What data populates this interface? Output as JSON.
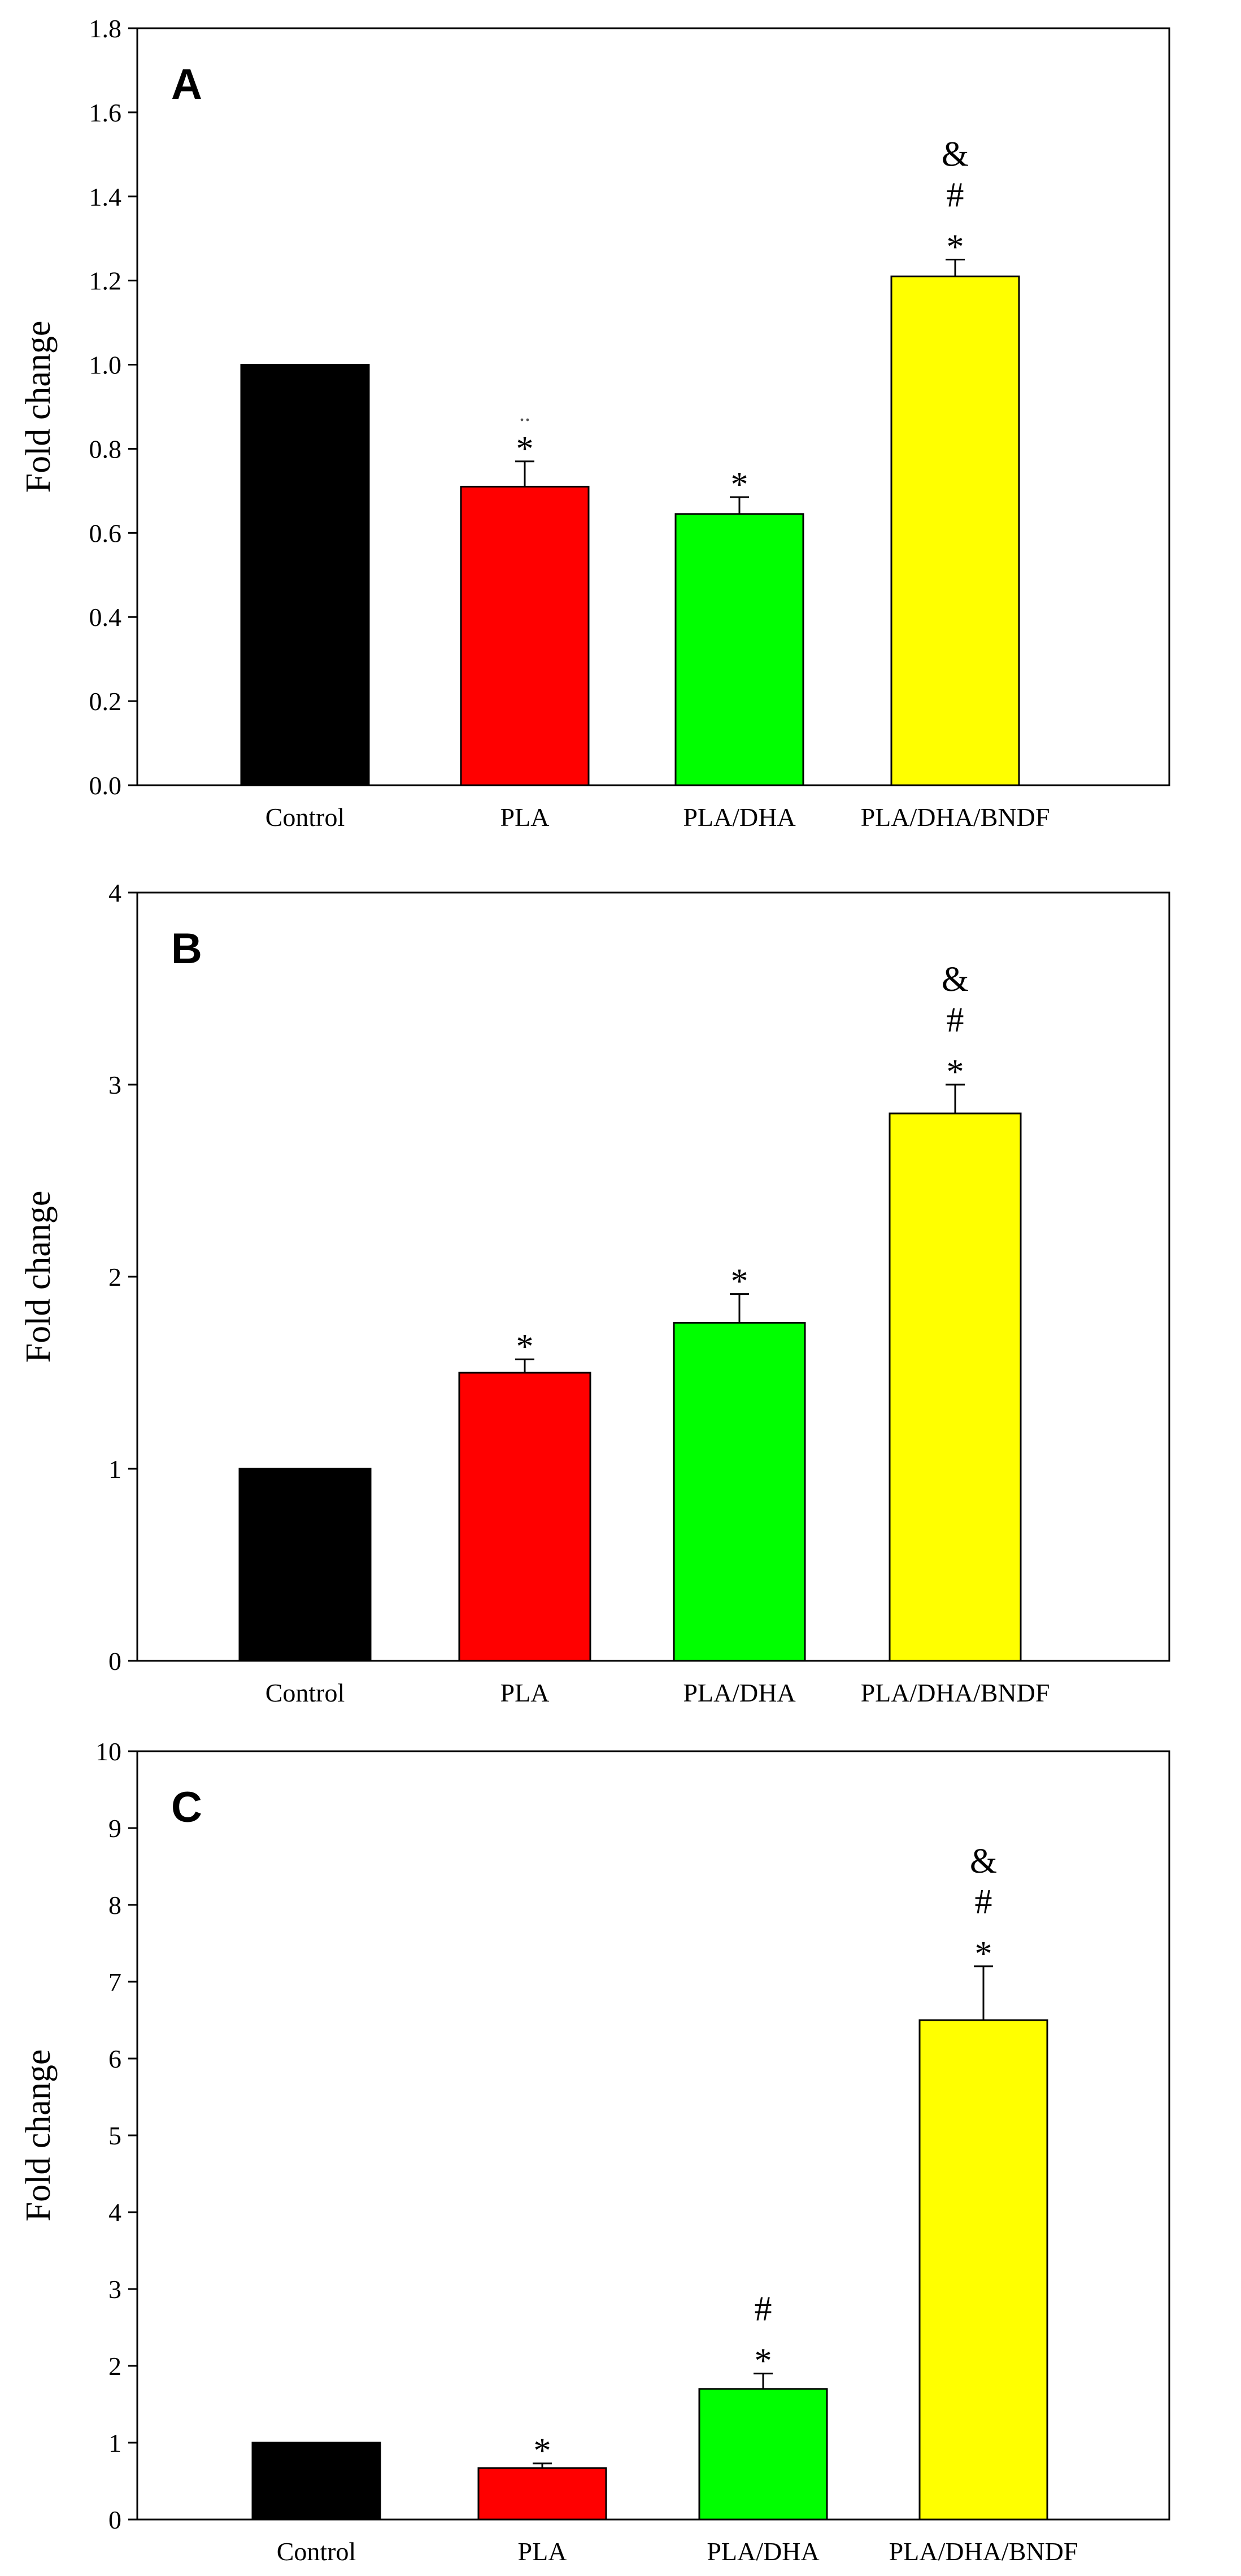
{
  "chart_data": [
    {
      "type": "bar",
      "panel_label": "A",
      "title": "",
      "xlabel": "",
      "ylabel": "Fold change",
      "ylim": [
        0,
        1.8
      ],
      "yticks": [
        "0.0",
        "0.2",
        "0.4",
        "0.6",
        "0.8",
        "1.0",
        "1.2",
        "1.4",
        "1.6",
        "1.8"
      ],
      "categories": [
        "Control",
        "PLA",
        "PLA/DHA",
        "PLA/DHA/BNDF"
      ],
      "values": [
        1.0,
        0.71,
        0.645,
        1.21
      ],
      "errors": [
        0,
        0.06,
        0.04,
        0.04
      ],
      "colors": [
        "#000000",
        "#ff0000",
        "#00ff00",
        "#ffff00"
      ],
      "annotations": [
        [],
        [
          "*"
        ],
        [
          "*"
        ],
        [
          "*",
          "#",
          "&"
        ]
      ],
      "marks": [
        "",
        "..",
        "",
        ""
      ]
    },
    {
      "type": "bar",
      "panel_label": "B",
      "title": "",
      "xlabel": "",
      "ylabel": "Fold change",
      "ylim": [
        0,
        4
      ],
      "yticks": [
        "0",
        "1",
        "2",
        "3",
        "4"
      ],
      "categories": [
        "Control",
        "PLA",
        "PLA/DHA",
        "PLA/DHA/BNDF"
      ],
      "values": [
        1.0,
        1.5,
        1.76,
        2.85
      ],
      "errors": [
        0,
        0.07,
        0.15,
        0.15
      ],
      "colors": [
        "#000000",
        "#ff0000",
        "#00ff00",
        "#ffff00"
      ],
      "annotations": [
        [],
        [
          "*"
        ],
        [
          "*"
        ],
        [
          "*",
          "#",
          "&"
        ]
      ],
      "marks": [
        "",
        "",
        "",
        ""
      ]
    },
    {
      "type": "bar",
      "panel_label": "C",
      "title": "",
      "xlabel": "",
      "ylabel": "Fold change",
      "ylim": [
        0,
        10
      ],
      "yticks": [
        "0",
        "1",
        "2",
        "3",
        "4",
        "5",
        "6",
        "7",
        "8",
        "9",
        "10"
      ],
      "categories": [
        "Control",
        "PLA",
        "PLA/DHA",
        "PLA/DHA/BNDF"
      ],
      "values": [
        1.0,
        0.67,
        1.7,
        6.5
      ],
      "errors": [
        0,
        0.06,
        0.2,
        0.7
      ],
      "colors": [
        "#000000",
        "#ff0000",
        "#00ff00",
        "#ffff00"
      ],
      "annotations": [
        [],
        [
          "*"
        ],
        [
          "*",
          "#"
        ],
        [
          "*",
          "#",
          "&"
        ]
      ],
      "marks": [
        "",
        "",
        "",
        ""
      ]
    }
  ]
}
